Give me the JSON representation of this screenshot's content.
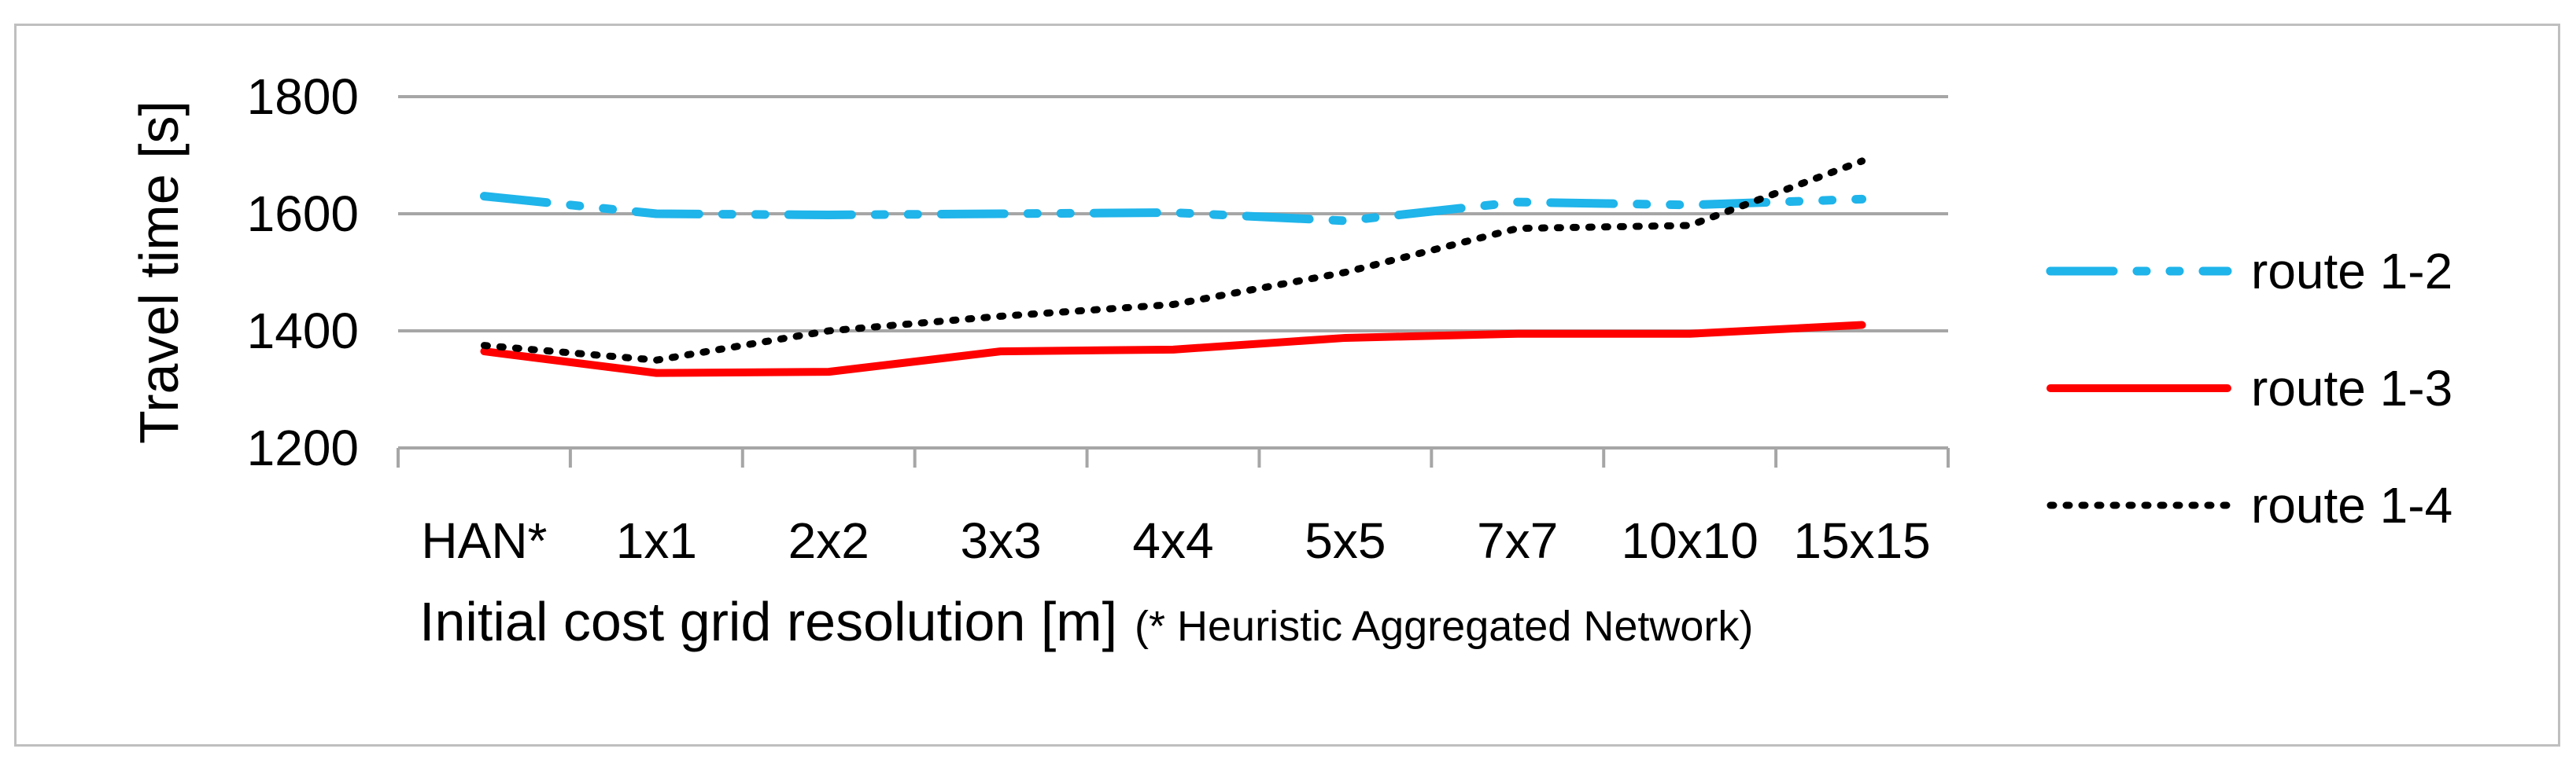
{
  "chart_data": {
    "type": "line",
    "title": "",
    "xlabel": "Initial cost grid resolution [m]",
    "xlabel_note": "(* Heuristic Aggregated Network)",
    "ylabel": "Travel time [s]",
    "categories": [
      "HAN*",
      "1x1",
      "2x2",
      "3x3",
      "4x4",
      "5x5",
      "7x7",
      "10x10",
      "15x15"
    ],
    "ylim": [
      1200,
      1800
    ],
    "yticks": [
      1200,
      1400,
      1600,
      1800
    ],
    "grid": true,
    "legend_position": "right",
    "series": [
      {
        "name": "route 1-2",
        "color": "#1fb4ea",
        "dash": "dash-dot-dot",
        "values": [
          1630,
          1600,
          1598,
          1600,
          1602,
          1588,
          1620,
          1615,
          1625
        ]
      },
      {
        "name": "route 1-3",
        "color": "#ff0000",
        "dash": "solid",
        "values": [
          1365,
          1328,
          1330,
          1365,
          1368,
          1388,
          1395,
          1395,
          1410
        ]
      },
      {
        "name": "route 1-4",
        "color": "#000000",
        "dash": "dotted",
        "values": [
          1375,
          1350,
          1400,
          1425,
          1445,
          1500,
          1575,
          1580,
          1690
        ]
      }
    ]
  }
}
